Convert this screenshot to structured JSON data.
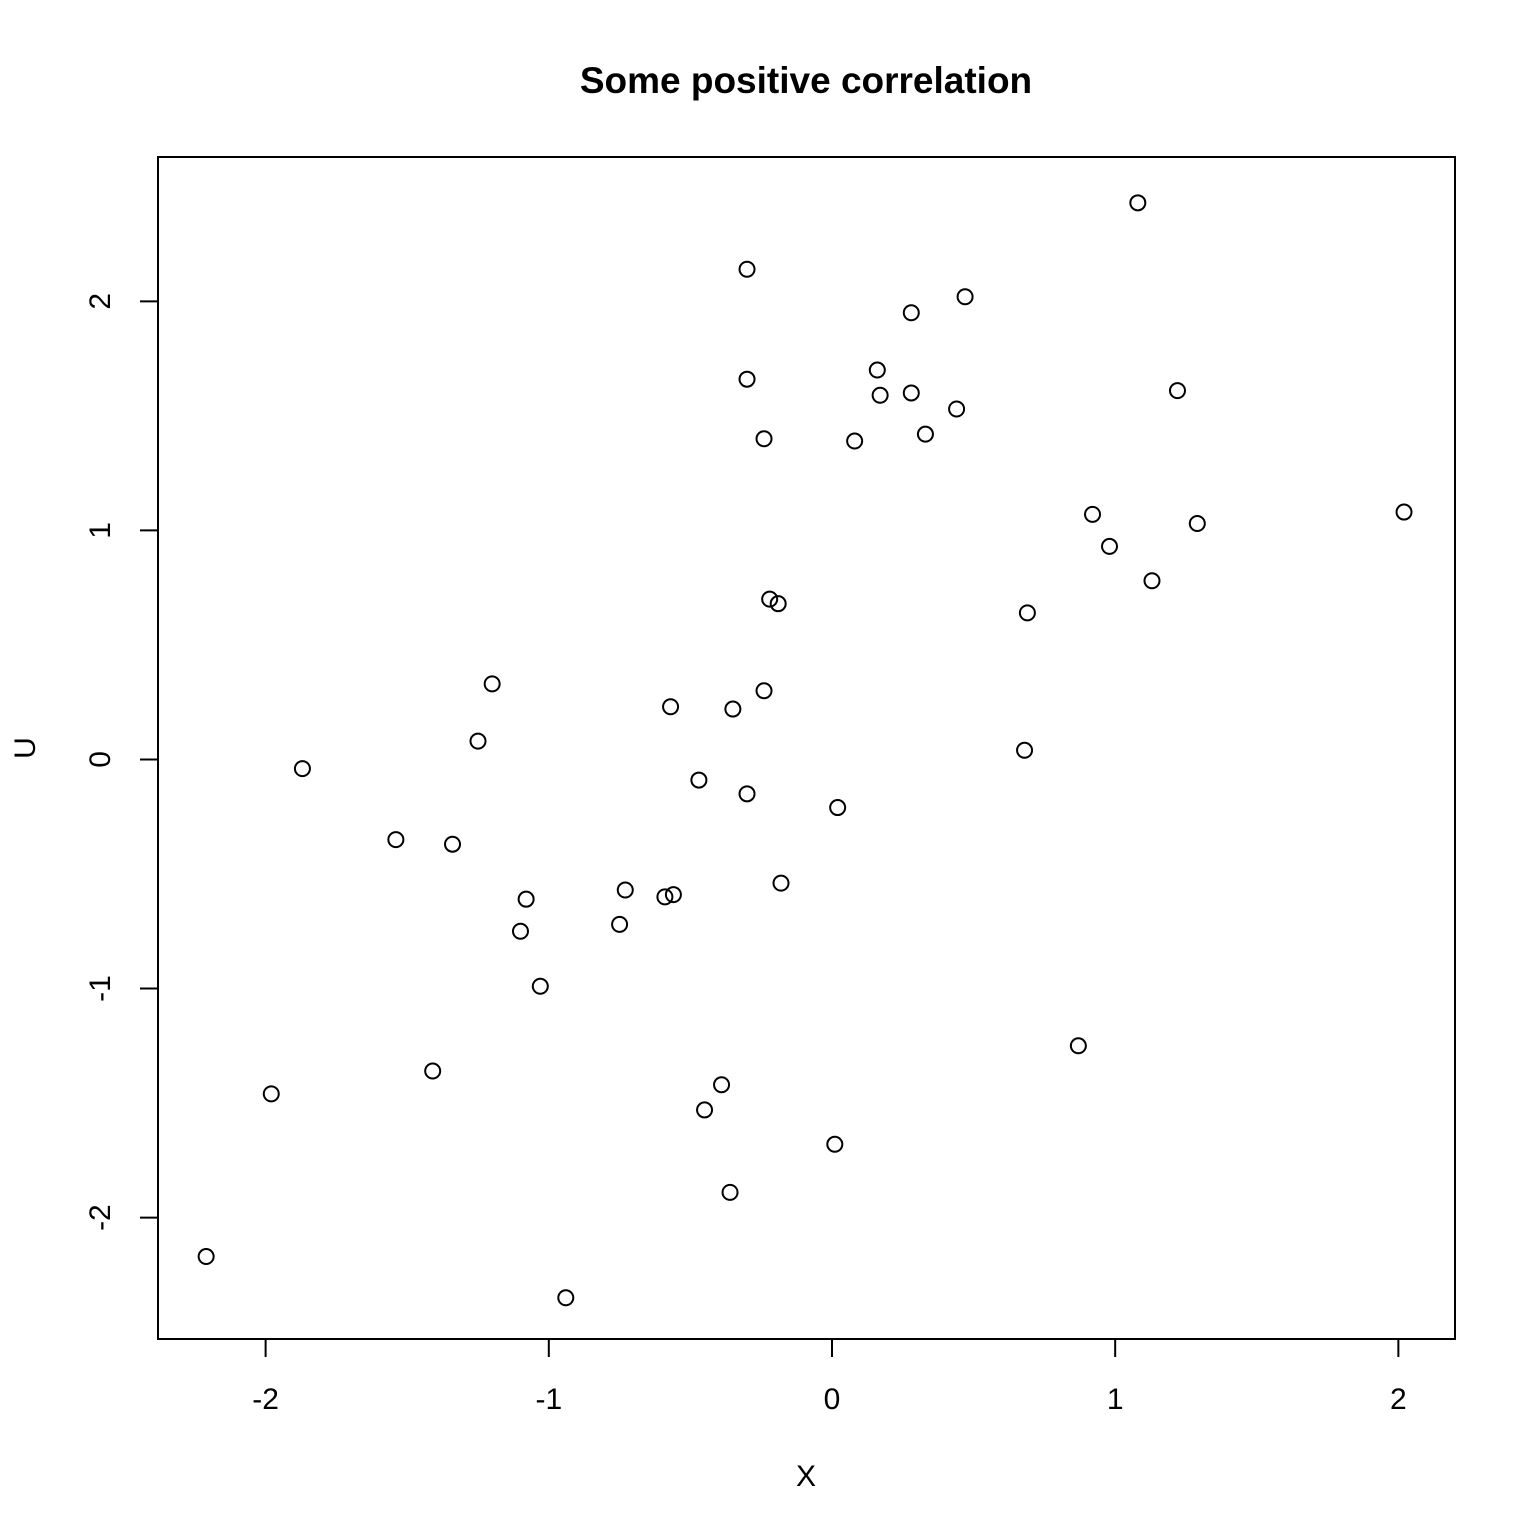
{
  "chart_data": {
    "type": "scatter",
    "title": "Some positive correlation",
    "xlabel": "X",
    "ylabel": "U",
    "xlim": [
      -2.38,
      2.2
    ],
    "ylim": [
      -2.53,
      2.63
    ],
    "xticks": [
      -2,
      -1,
      0,
      1,
      2
    ],
    "yticks": [
      -2,
      -1,
      0,
      1,
      2
    ],
    "xtick_labels": [
      "-2",
      "-1",
      "0",
      "1",
      "2"
    ],
    "ytick_labels": [
      "-2",
      "-1",
      "0",
      "1",
      "2"
    ],
    "grid": false,
    "marker": "open-circle",
    "points": [
      {
        "x": 1.08,
        "y": 2.43
      },
      {
        "x": -0.3,
        "y": 2.14
      },
      {
        "x": 0.47,
        "y": 2.02
      },
      {
        "x": 0.28,
        "y": 1.95
      },
      {
        "x": 0.16,
        "y": 1.7
      },
      {
        "x": -0.3,
        "y": 1.66
      },
      {
        "x": 1.22,
        "y": 1.61
      },
      {
        "x": 0.28,
        "y": 1.6
      },
      {
        "x": 0.17,
        "y": 1.59
      },
      {
        "x": 0.44,
        "y": 1.53
      },
      {
        "x": 0.33,
        "y": 1.42
      },
      {
        "x": -0.24,
        "y": 1.4
      },
      {
        "x": 0.08,
        "y": 1.39
      },
      {
        "x": 2.02,
        "y": 1.08
      },
      {
        "x": 0.92,
        "y": 1.07
      },
      {
        "x": 1.29,
        "y": 1.03
      },
      {
        "x": 0.98,
        "y": 0.93
      },
      {
        "x": 1.13,
        "y": 0.78
      },
      {
        "x": -0.22,
        "y": 0.7
      },
      {
        "x": -0.19,
        "y": 0.68
      },
      {
        "x": 0.69,
        "y": 0.64
      },
      {
        "x": -1.2,
        "y": 0.33
      },
      {
        "x": -0.24,
        "y": 0.3
      },
      {
        "x": -0.57,
        "y": 0.23
      },
      {
        "x": -0.35,
        "y": 0.22
      },
      {
        "x": -1.25,
        "y": 0.08
      },
      {
        "x": 0.68,
        "y": 0.04
      },
      {
        "x": -1.87,
        "y": -0.04
      },
      {
        "x": -0.47,
        "y": -0.09
      },
      {
        "x": -0.3,
        "y": -0.15
      },
      {
        "x": 0.02,
        "y": -0.21
      },
      {
        "x": -1.54,
        "y": -0.35
      },
      {
        "x": -1.34,
        "y": -0.37
      },
      {
        "x": -0.18,
        "y": -0.54
      },
      {
        "x": -0.73,
        "y": -0.57
      },
      {
        "x": -0.59,
        "y": -0.6
      },
      {
        "x": -0.56,
        "y": -0.59
      },
      {
        "x": -1.08,
        "y": -0.61
      },
      {
        "x": -0.75,
        "y": -0.72
      },
      {
        "x": -1.1,
        "y": -0.75
      },
      {
        "x": -1.03,
        "y": -0.99
      },
      {
        "x": 0.87,
        "y": -1.25
      },
      {
        "x": -1.41,
        "y": -1.36
      },
      {
        "x": -0.39,
        "y": -1.42
      },
      {
        "x": -1.98,
        "y": -1.46
      },
      {
        "x": -0.45,
        "y": -1.53
      },
      {
        "x": 0.01,
        "y": -1.68
      },
      {
        "x": -0.36,
        "y": -1.89
      },
      {
        "x": -2.21,
        "y": -2.17
      },
      {
        "x": -0.94,
        "y": -2.35
      }
    ]
  }
}
